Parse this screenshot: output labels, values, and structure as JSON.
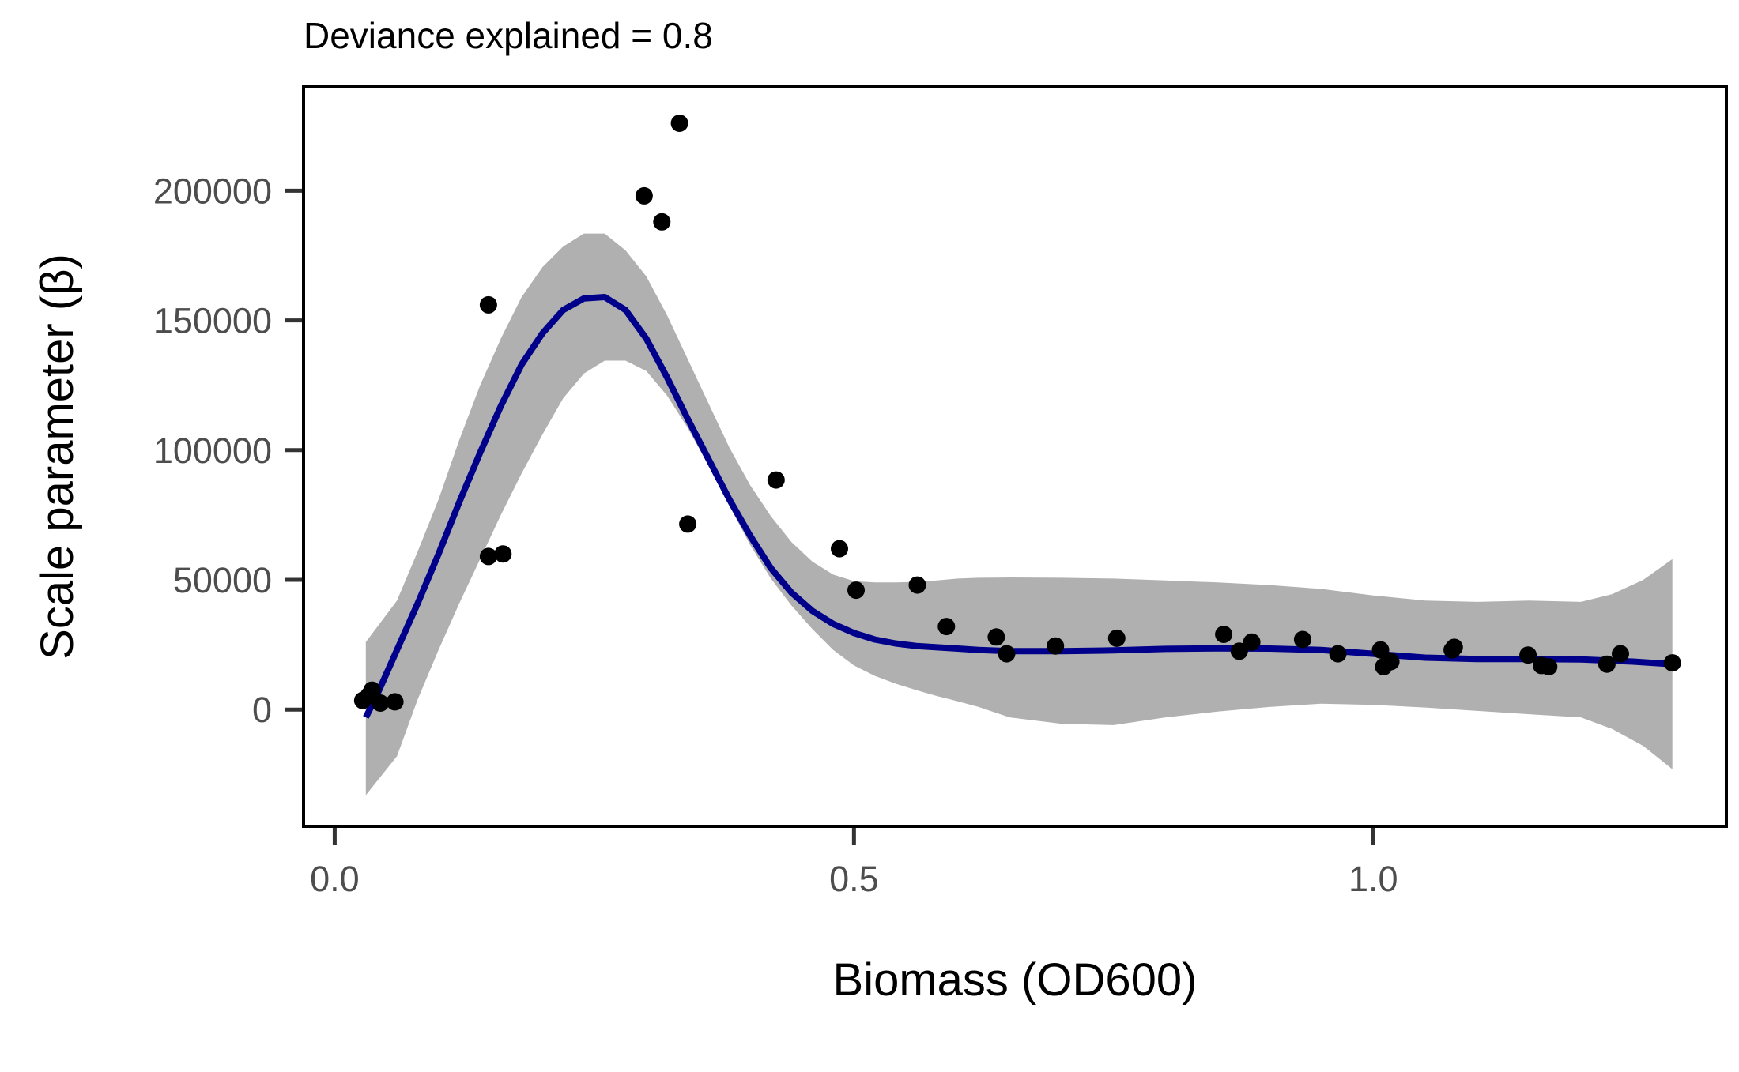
{
  "chart_data": {
    "type": "scatter",
    "title": "Deviance explained = 0.8",
    "xlabel": "Biomass (OD600)",
    "ylabel": "Scale parameter (β)",
    "xlim": [
      -0.03,
      1.34
    ],
    "ylim": [
      -45000,
      240000
    ],
    "x_ticks": [
      0.0,
      0.5,
      1.0
    ],
    "x_tick_labels": [
      "0.0",
      "0.5",
      "1.0"
    ],
    "y_ticks": [
      0,
      50000,
      100000,
      150000,
      200000
    ],
    "y_tick_labels": [
      "0",
      "50000",
      "100000",
      "150000",
      "200000"
    ],
    "grid": false,
    "colors": {
      "points": "#000000",
      "fit_line": "#00008b",
      "ci_band": "#b0b0b0"
    },
    "series": [
      {
        "type": "scatter",
        "x": [
          0.027,
          0.033,
          0.036,
          0.044,
          0.058,
          0.148,
          0.148,
          0.162,
          0.298,
          0.315,
          0.332,
          0.34,
          0.425,
          0.486,
          0.502,
          0.561,
          0.589,
          0.637,
          0.647,
          0.694,
          0.753,
          0.856,
          0.871,
          0.883,
          0.932,
          0.966,
          1.007,
          1.01,
          1.017,
          1.076,
          1.078,
          1.149,
          1.162,
          1.169,
          1.225,
          1.238,
          1.288
        ],
        "y": [
          3500,
          5500,
          7500,
          2500,
          3000,
          156000,
          59000,
          60000,
          198000,
          188000,
          226000,
          71500,
          88500,
          62000,
          46000,
          48000,
          32000,
          28000,
          21500,
          24500,
          27500,
          29000,
          22500,
          26000,
          27000,
          21500,
          23000,
          16500,
          18500,
          23000,
          24000,
          21000,
          17000,
          16500,
          17500,
          21500,
          18000
        ]
      },
      {
        "type": "line",
        "x": [
          0.03,
          0.04,
          0.06,
          0.08,
          0.1,
          0.12,
          0.14,
          0.16,
          0.18,
          0.2,
          0.22,
          0.24,
          0.26,
          0.28,
          0.3,
          0.32,
          0.34,
          0.36,
          0.38,
          0.4,
          0.42,
          0.44,
          0.46,
          0.48,
          0.5,
          0.52,
          0.54,
          0.56,
          0.58,
          0.6,
          0.62,
          0.65,
          0.7,
          0.75,
          0.8,
          0.85,
          0.9,
          0.95,
          1.0,
          1.05,
          1.1,
          1.15,
          1.2,
          1.25,
          1.288
        ],
        "y": [
          -3000,
          5000,
          23000,
          41000,
          60000,
          80000,
          99000,
          117000,
          133000,
          145000,
          154000,
          158500,
          159000,
          154000,
          143000,
          128000,
          112000,
          96500,
          81000,
          67000,
          54500,
          45000,
          38000,
          33000,
          29500,
          27000,
          25500,
          24500,
          24000,
          23500,
          23000,
          22500,
          22500,
          22800,
          23400,
          23600,
          23500,
          23000,
          21500,
          20000,
          19500,
          19500,
          19300,
          18500,
          17500
        ]
      },
      {
        "type": "area",
        "x": [
          0.03,
          0.06,
          0.08,
          0.1,
          0.12,
          0.14,
          0.16,
          0.18,
          0.2,
          0.22,
          0.24,
          0.26,
          0.28,
          0.3,
          0.32,
          0.34,
          0.36,
          0.38,
          0.4,
          0.42,
          0.44,
          0.46,
          0.48,
          0.5,
          0.52,
          0.54,
          0.56,
          0.58,
          0.6,
          0.62,
          0.65,
          0.7,
          0.75,
          0.8,
          0.85,
          0.9,
          0.95,
          1.0,
          1.05,
          1.1,
          1.15,
          1.2,
          1.23,
          1.26,
          1.288
        ],
        "upper": [
          26000,
          42000,
          61000,
          81000,
          104000,
          125000,
          143000,
          159000,
          170500,
          178500,
          183500,
          183500,
          177000,
          167000,
          152000,
          135000,
          118000,
          101000,
          86500,
          74500,
          64500,
          57000,
          52000,
          49500,
          49000,
          49000,
          49200,
          49800,
          50500,
          50800,
          50900,
          50800,
          50500,
          49800,
          49000,
          48000,
          46500,
          44000,
          42000,
          41500,
          42000,
          41500,
          44500,
          50000,
          58000
        ],
        "lower": [
          -33000,
          -18000,
          4000,
          23000,
          41000,
          58000,
          75000,
          91000,
          106000,
          120000,
          129500,
          134500,
          134500,
          130500,
          121000,
          108500,
          94000,
          78500,
          63500,
          50500,
          40000,
          31000,
          23000,
          17000,
          13000,
          10000,
          7500,
          5200,
          3200,
          1000,
          -3000,
          -5500,
          -6000,
          -3000,
          -800,
          1000,
          2300,
          1800,
          800,
          -500,
          -1800,
          -3000,
          -7500,
          -14000,
          -23000
        ]
      }
    ]
  }
}
